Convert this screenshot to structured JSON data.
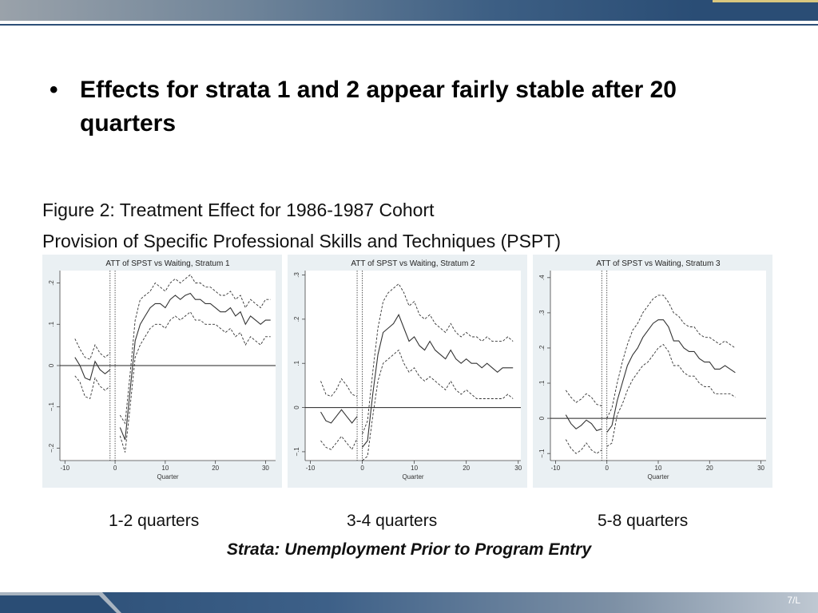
{
  "slide": {
    "bullet": "Effects for strata 1 and 2 appear fairly stable after 20 quarters",
    "bullet_marker": "•",
    "figure_caption_1": "Figure 2: Treatment Effect for 1986-1987 Cohort",
    "figure_caption_2": "Provision of Specific Professional Skills and Techniques (PSPT)",
    "panel_labels": [
      "1-2 quarters",
      "3-4 quarters",
      "5-8 quarters"
    ],
    "strata_note": "Strata: Unemployment Prior to Program Entry",
    "page_number": "7/L"
  },
  "colors": {
    "header_dark": "#2a4d75",
    "panel_bg": "#eaf0f3"
  },
  "chart_data": [
    {
      "type": "line",
      "title": "ATT of SPST vs Waiting, Stratum 1",
      "xlabel": "Quarter",
      "ylabel": "",
      "xlim": [
        -11,
        32
      ],
      "ylim": [
        -0.23,
        0.23
      ],
      "xticks": [
        -10,
        0,
        10,
        20,
        30
      ],
      "yticks": [
        -0.2,
        -0.1,
        0,
        0.1,
        0.2
      ],
      "ytick_labels": [
        "−.2",
        "−.1",
        "0",
        ".1",
        ".2"
      ],
      "vlines": [
        -1,
        0
      ],
      "hline": 0,
      "x": [
        -8,
        -7,
        -6,
        -5,
        -4,
        -3,
        -2,
        -1,
        1,
        2,
        3,
        4,
        5,
        6,
        7,
        8,
        9,
        10,
        11,
        12,
        13,
        14,
        15,
        16,
        17,
        18,
        19,
        20,
        21,
        22,
        23,
        24,
        25,
        26,
        27,
        28,
        29,
        30,
        31
      ],
      "series": [
        {
          "values": [
            0.02,
            0.0,
            -0.03,
            -0.035,
            0.01,
            -0.01,
            -0.02,
            -0.01,
            -0.15,
            -0.18,
            -0.06,
            0.06,
            0.1,
            0.12,
            0.14,
            0.15,
            0.15,
            0.14,
            0.16,
            0.17,
            0.16,
            0.17,
            0.175,
            0.16,
            0.16,
            0.15,
            0.15,
            0.14,
            0.13,
            0.13,
            0.14,
            0.12,
            0.13,
            0.1,
            0.12,
            0.11,
            0.1,
            0.11,
            0.11
          ]
        },
        {
          "values": [
            0.065,
            0.04,
            0.02,
            0.015,
            0.05,
            0.03,
            0.02,
            0.03,
            -0.12,
            -0.14,
            -0.02,
            0.11,
            0.16,
            0.17,
            0.18,
            0.2,
            0.19,
            0.18,
            0.2,
            0.21,
            0.2,
            0.21,
            0.22,
            0.2,
            0.2,
            0.19,
            0.19,
            0.18,
            0.17,
            0.17,
            0.18,
            0.16,
            0.17,
            0.14,
            0.16,
            0.15,
            0.14,
            0.16,
            0.16
          ]
        },
        {
          "values": [
            -0.025,
            -0.04,
            -0.075,
            -0.08,
            -0.03,
            -0.05,
            -0.06,
            -0.05,
            -0.17,
            -0.21,
            -0.1,
            0.02,
            0.05,
            0.07,
            0.09,
            0.1,
            0.1,
            0.09,
            0.11,
            0.12,
            0.11,
            0.12,
            0.13,
            0.11,
            0.11,
            0.1,
            0.1,
            0.1,
            0.09,
            0.08,
            0.09,
            0.07,
            0.08,
            0.05,
            0.07,
            0.06,
            0.05,
            0.07,
            0.07
          ]
        }
      ]
    },
    {
      "type": "line",
      "title": "ATT of SPST vs Waiting, Stratum 2",
      "xlabel": "Quarter",
      "ylabel": "",
      "xlim": [
        -11,
        30.5
      ],
      "ylim": [
        -0.12,
        0.31
      ],
      "xticks": [
        -10,
        0,
        10,
        20,
        30
      ],
      "yticks": [
        -0.1,
        0,
        0.1,
        0.2,
        0.3
      ],
      "ytick_labels": [
        "−.1",
        "0",
        ".1",
        ".2",
        ".3"
      ],
      "vlines": [
        -1,
        0
      ],
      "hline": 0,
      "x": [
        -8,
        -7,
        -6,
        -5,
        -4,
        -3,
        -2,
        -1,
        0,
        1,
        2,
        3,
        4,
        5,
        6,
        7,
        8,
        9,
        10,
        11,
        12,
        13,
        14,
        15,
        16,
        17,
        18,
        19,
        20,
        21,
        22,
        23,
        24,
        25,
        26,
        27,
        28,
        29
      ],
      "series": [
        {
          "values": [
            -0.01,
            -0.03,
            -0.035,
            -0.02,
            -0.005,
            -0.02,
            -0.035,
            -0.02,
            -0.09,
            -0.075,
            0.03,
            0.12,
            0.17,
            0.18,
            0.19,
            0.21,
            0.18,
            0.15,
            0.16,
            0.14,
            0.13,
            0.15,
            0.13,
            0.12,
            0.11,
            0.13,
            0.11,
            0.1,
            0.11,
            0.1,
            0.1,
            0.09,
            0.1,
            0.09,
            0.08,
            0.09,
            0.09,
            0.09
          ]
        },
        {
          "values": [
            0.06,
            0.03,
            0.025,
            0.04,
            0.065,
            0.05,
            0.03,
            0.025,
            -0.06,
            -0.03,
            0.08,
            0.18,
            0.24,
            0.26,
            0.27,
            0.28,
            0.26,
            0.23,
            0.24,
            0.21,
            0.2,
            0.21,
            0.19,
            0.18,
            0.17,
            0.19,
            0.17,
            0.16,
            0.17,
            0.16,
            0.16,
            0.15,
            0.16,
            0.15,
            0.15,
            0.15,
            0.16,
            0.15
          ]
        },
        {
          "values": [
            -0.075,
            -0.09,
            -0.095,
            -0.08,
            -0.065,
            -0.08,
            -0.095,
            -0.07,
            -0.12,
            -0.11,
            -0.02,
            0.06,
            0.1,
            0.11,
            0.12,
            0.13,
            0.1,
            0.08,
            0.09,
            0.07,
            0.06,
            0.07,
            0.06,
            0.05,
            0.04,
            0.06,
            0.04,
            0.03,
            0.04,
            0.03,
            0.02,
            0.02,
            0.02,
            0.02,
            0.02,
            0.02,
            0.03,
            0.02
          ]
        }
      ]
    },
    {
      "type": "line",
      "title": "ATT of SPST vs Waiting, Stratum 3",
      "xlabel": "Quarter",
      "ylabel": "",
      "xlim": [
        -11,
        31
      ],
      "ylim": [
        -0.12,
        0.42
      ],
      "xticks": [
        -10,
        0,
        10,
        20,
        30
      ],
      "yticks": [
        -0.1,
        0,
        0.1,
        0.2,
        0.3,
        0.4
      ],
      "ytick_labels": [
        "−.1",
        "0",
        ".1",
        ".2",
        ".3",
        ".4"
      ],
      "vlines": [
        -1,
        0
      ],
      "hline": 0,
      "x": [
        -8,
        -7,
        -6,
        -5,
        -4,
        -3,
        -2,
        -1,
        0,
        1,
        2,
        3,
        4,
        5,
        6,
        7,
        8,
        9,
        10,
        11,
        12,
        13,
        14,
        15,
        16,
        17,
        18,
        19,
        20,
        21,
        22,
        23,
        24,
        25
      ],
      "series": [
        {
          "values": [
            0.01,
            -0.015,
            -0.03,
            -0.02,
            -0.005,
            -0.015,
            -0.035,
            -0.03,
            -0.04,
            -0.02,
            0.05,
            0.1,
            0.15,
            0.18,
            0.2,
            0.23,
            0.25,
            0.27,
            0.28,
            0.28,
            0.26,
            0.22,
            0.22,
            0.2,
            0.19,
            0.19,
            0.17,
            0.16,
            0.16,
            0.14,
            0.14,
            0.15,
            0.14,
            0.13
          ]
        },
        {
          "values": [
            0.08,
            0.06,
            0.045,
            0.055,
            0.07,
            0.06,
            0.04,
            0.035,
            0.0,
            0.03,
            0.1,
            0.16,
            0.21,
            0.25,
            0.27,
            0.3,
            0.32,
            0.34,
            0.35,
            0.35,
            0.33,
            0.3,
            0.29,
            0.27,
            0.26,
            0.26,
            0.24,
            0.23,
            0.23,
            0.22,
            0.21,
            0.22,
            0.21,
            0.2
          ]
        },
        {
          "values": [
            -0.06,
            -0.085,
            -0.1,
            -0.09,
            -0.07,
            -0.09,
            -0.1,
            -0.09,
            -0.08,
            -0.07,
            0.01,
            0.04,
            0.08,
            0.11,
            0.13,
            0.15,
            0.16,
            0.18,
            0.2,
            0.21,
            0.19,
            0.15,
            0.15,
            0.13,
            0.12,
            0.12,
            0.1,
            0.09,
            0.09,
            0.07,
            0.07,
            0.07,
            0.07,
            0.06
          ]
        }
      ]
    }
  ]
}
